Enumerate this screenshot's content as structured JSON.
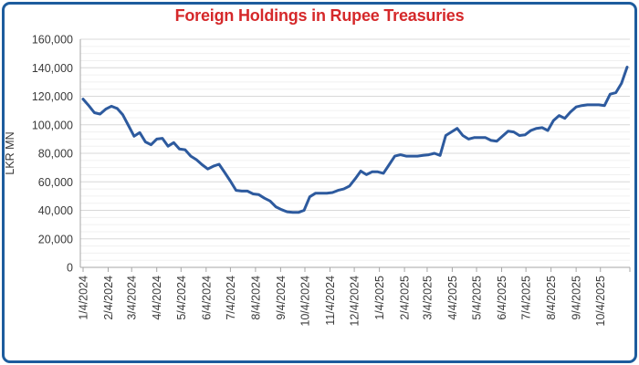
{
  "chart_data": {
    "type": "line",
    "title": "Foreign Holdings in Rupee Treasuries",
    "xlabel": "",
    "ylabel": "LKR MN",
    "ylim": [
      0,
      160000
    ],
    "y_major_step": 20000,
    "y_minor_step": 5000,
    "grid": true,
    "legend_position": "none",
    "y_tick_labels": [
      "0",
      "20,000",
      "40,000",
      "60,000",
      "80,000",
      "100,000",
      "120,000",
      "140,000",
      "160,000"
    ],
    "x_tick_labels": [
      "1/4/2024",
      "2/4/2024",
      "3/4/2024",
      "4/4/2024",
      "5/4/2024",
      "6/4/2024",
      "7/4/2024",
      "8/4/2024",
      "9/4/2024",
      "10/4/2024",
      "11/4/2024",
      "12/4/2024",
      "1/4/2025",
      "2/4/2025",
      "3/4/2025",
      "4/4/2025",
      "5/4/2025",
      "6/4/2025",
      "7/4/2025",
      "8/4/2025",
      "9/4/2025",
      "10/4/2025"
    ],
    "series": [
      {
        "name": "Foreign Holdings in Rupee Treasuries (LKR MN)",
        "frequency": "weekly",
        "start_date": "1/4/2024",
        "values": [
          118000,
          113500,
          108500,
          107500,
          111000,
          113000,
          111500,
          107000,
          99500,
          92000,
          94500,
          88000,
          86000,
          90000,
          90500,
          85000,
          87500,
          83000,
          82500,
          78000,
          75500,
          72000,
          69000,
          71000,
          72300,
          66500,
          60500,
          54000,
          53500,
          53500,
          51500,
          51000,
          48500,
          46500,
          42500,
          40500,
          39000,
          38500,
          38500,
          40000,
          49500,
          52000,
          52000,
          52000,
          52500,
          54000,
          55000,
          57000,
          62000,
          67500,
          65000,
          67000,
          67000,
          66000,
          72000,
          78000,
          79000,
          78000,
          78000,
          78000,
          78500,
          79000,
          80000,
          78500,
          92500,
          95000,
          97500,
          92500,
          90000,
          91000,
          91000,
          91000,
          89000,
          88500,
          92000,
          95500,
          95000,
          92500,
          93000,
          96000,
          97500,
          98000,
          96000,
          103000,
          106500,
          104500,
          109000,
          112500,
          113500,
          114000,
          114000,
          114000,
          113500,
          121500,
          122500,
          129000,
          140500
        ]
      }
    ],
    "colors": {
      "line": "#2d5a9e",
      "title_color": "#d5282a",
      "border": "#1d5c9d",
      "axis": "#a6a6a6",
      "grid_major": "#d8d8d8",
      "grid_minor": "#f0f0f0",
      "tick_label": "#3a3a3a",
      "background": "#ffffff"
    }
  }
}
